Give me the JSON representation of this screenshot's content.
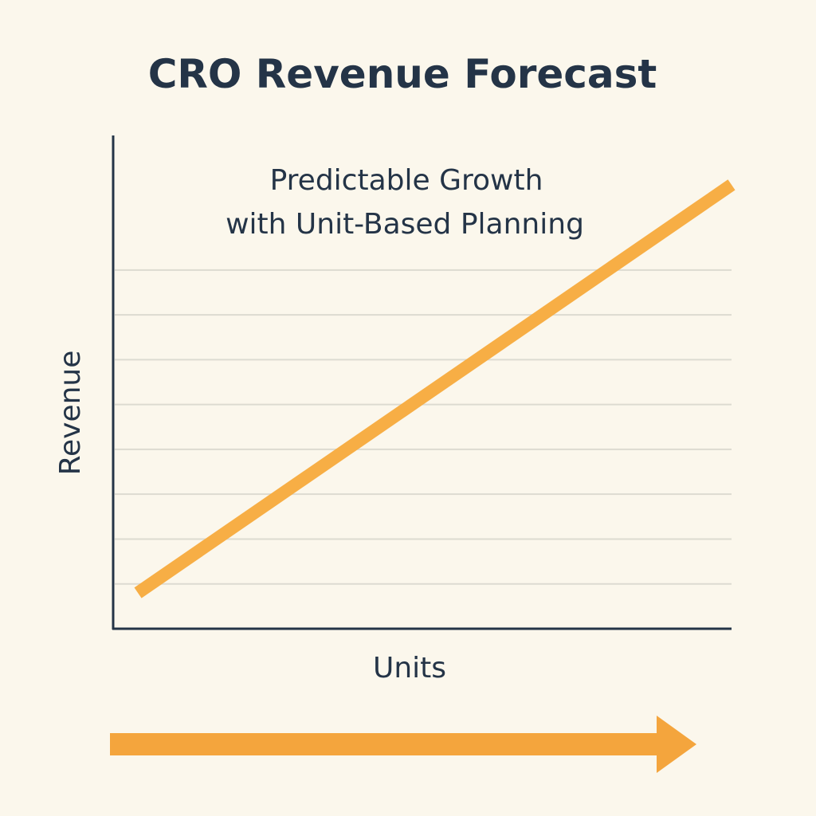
{
  "chart_data": {
    "type": "line",
    "title": "CRO Revenue Forecast",
    "annotation": [
      "Predictable Growth",
      "with Unit-Based Planning"
    ],
    "xlabel": "Units",
    "ylabel": "Revenue",
    "xlim": [
      0,
      10
    ],
    "ylim": [
      0,
      11
    ],
    "grid": true,
    "gridlines_y": [
      1,
      2,
      3,
      4,
      5,
      6,
      7,
      8
    ],
    "series": [
      {
        "x": [
          0.4,
          10
        ],
        "y": [
          0.8,
          9.9
        ],
        "color": "#f7ae45"
      }
    ],
    "axis_color": "#243447",
    "grid_color": "#dddbd1"
  },
  "decorations": {
    "arrow_color": "#f4a53d",
    "arrow_direction": "right"
  }
}
